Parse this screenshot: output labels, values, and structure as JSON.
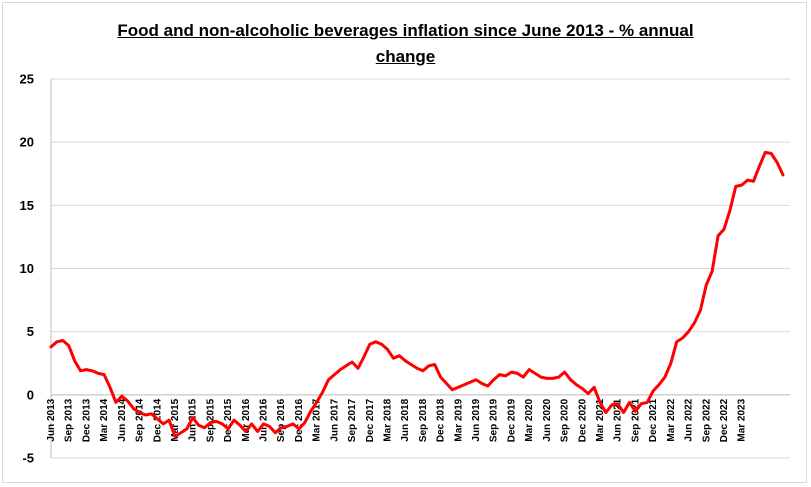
{
  "chart_data": {
    "type": "line",
    "title_line1": "Food and non-alcoholic beverages inflation since June 2013 - % annual",
    "title_line2": "change",
    "xlabel": "",
    "ylabel": "",
    "ylim": [
      -5,
      25
    ],
    "yticks": [
      -5,
      0,
      5,
      10,
      15,
      20,
      25
    ],
    "grid": true,
    "legend": "none",
    "line_color": "#ff0000",
    "x_tick_labels": [
      "Jun 2013",
      "Sep 2013",
      "Dec 2013",
      "Mar 2014",
      "Jun 2014",
      "Sep 2014",
      "Dec 2014",
      "Mar 2015",
      "Jun 2015",
      "Sep 2015",
      "Dec 2015",
      "Mar 2016",
      "Jun 2016",
      "Sep 2016",
      "Dec 2016",
      "Mar 2017",
      "Jun 2017",
      "Sep 2017",
      "Dec 2017",
      "Mar 2018",
      "Jun 2018",
      "Sep 2018",
      "Dec 2018",
      "Mar 2019",
      "Jun 2019",
      "Sep 2019",
      "Dec 2019",
      "Mar 2020",
      "Jun 2020",
      "Sep 2020",
      "Dec 2020",
      "Mar 2021",
      "Jun 2021",
      "Sep 2021",
      "Dec 2021",
      "Mar 2022",
      "Jun 2022",
      "Sep 2022",
      "Dec 2022",
      "Mar 2023"
    ],
    "series": [
      {
        "values": [
          3.8,
          4.2,
          4.3,
          3.9,
          2.7,
          1.9,
          2.0,
          1.9,
          1.7,
          1.6,
          0.6,
          -0.6,
          -0.1,
          -0.5,
          -1.1,
          -1.4,
          -1.6,
          -1.5,
          -1.9,
          -2.3,
          -2.0,
          -3.3,
          -3.0,
          -2.7,
          -1.8,
          -2.4,
          -2.6,
          -2.2,
          -2.1,
          -2.3,
          -2.7,
          -2.0,
          -2.4,
          -2.9,
          -2.3,
          -2.9,
          -2.3,
          -2.5,
          -3.0,
          -2.6,
          -2.5,
          -2.3,
          -2.7,
          -2.2,
          -1.3,
          -0.6,
          0.2,
          1.2,
          1.6,
          2.0,
          2.3,
          2.6,
          2.1,
          3.0,
          4.0,
          4.2,
          4.0,
          3.6,
          2.9,
          3.1,
          2.7,
          2.4,
          2.1,
          1.9,
          2.3,
          2.4,
          1.4,
          0.9,
          0.4,
          0.6,
          0.8,
          1.0,
          1.2,
          0.9,
          0.7,
          1.2,
          1.6,
          1.5,
          1.8,
          1.7,
          1.4,
          2.0,
          1.7,
          1.4,
          1.3,
          1.3,
          1.4,
          1.8,
          1.2,
          0.8,
          0.5,
          0.1,
          0.6,
          -0.6,
          -1.4,
          -0.8,
          -0.7,
          -1.4,
          -0.6,
          -1.3,
          -0.7,
          -0.6,
          0.3,
          0.8,
          1.4,
          2.5,
          4.2,
          4.5,
          5.0,
          5.7,
          6.7,
          8.7,
          9.8,
          12.6,
          13.1,
          14.6,
          16.5,
          16.6,
          17.0,
          16.9,
          18.1,
          19.2,
          19.1,
          18.4,
          17.4
        ]
      }
    ]
  }
}
